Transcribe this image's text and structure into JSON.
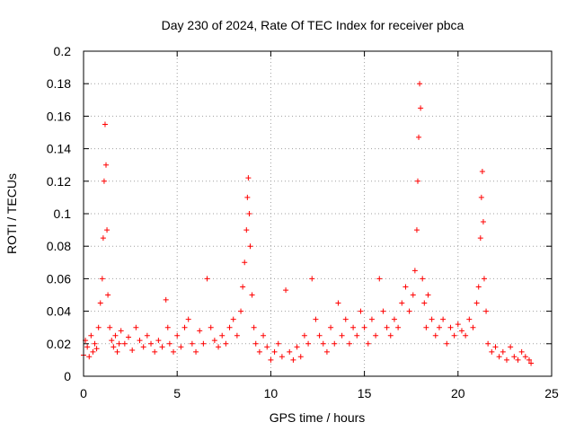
{
  "chart_data": {
    "type": "scatter",
    "title": "Day 230 of 2024, Rate Of TEC Index for receiver pbca",
    "xlabel": "GPS time / hours",
    "ylabel": "ROTI / TECUs",
    "xlim": [
      0,
      25
    ],
    "ylim": [
      0,
      0.2
    ],
    "x_ticks": [
      0,
      5,
      10,
      15,
      20,
      25
    ],
    "x_tick_labels": [
      "0",
      "5",
      "10",
      "15",
      "20",
      "25"
    ],
    "y_ticks": [
      0,
      0.02,
      0.04,
      0.06,
      0.08,
      0.1,
      0.12,
      0.14,
      0.16,
      0.18,
      0.2
    ],
    "y_tick_labels": [
      "0",
      "0.02",
      "0.04",
      "0.06",
      "0.08",
      "0.1",
      "0.12",
      "0.14",
      "0.16",
      "0.18",
      "0.2"
    ],
    "grid": true,
    "marker": "+",
    "color": "#ff0000",
    "series": [
      {
        "name": "ROTI",
        "x": [
          0.0,
          0.1,
          0.2,
          0.3,
          0.4,
          0.5,
          0.6,
          0.7,
          0.8,
          0.9,
          1.0,
          1.05,
          1.1,
          1.15,
          1.2,
          1.25,
          1.3,
          1.4,
          1.5,
          1.6,
          1.7,
          1.8,
          1.9,
          2.0,
          2.2,
          2.4,
          2.6,
          2.8,
          3.0,
          3.2,
          3.4,
          3.6,
          3.8,
          4.0,
          4.2,
          4.4,
          4.5,
          4.6,
          4.8,
          5.0,
          5.2,
          5.4,
          5.6,
          5.8,
          6.0,
          6.2,
          6.4,
          6.6,
          6.8,
          7.0,
          7.2,
          7.4,
          7.6,
          7.8,
          8.0,
          8.2,
          8.4,
          8.5,
          8.6,
          8.7,
          8.75,
          8.8,
          8.85,
          8.9,
          9.0,
          9.1,
          9.2,
          9.4,
          9.6,
          9.8,
          10.0,
          10.2,
          10.4,
          10.6,
          10.8,
          11.0,
          11.2,
          11.4,
          11.6,
          11.8,
          12.0,
          12.2,
          12.4,
          12.6,
          12.8,
          13.0,
          13.2,
          13.4,
          13.6,
          13.8,
          14.0,
          14.2,
          14.4,
          14.6,
          14.8,
          15.0,
          15.2,
          15.4,
          15.6,
          15.8,
          16.0,
          16.2,
          16.4,
          16.6,
          16.8,
          17.0,
          17.2,
          17.4,
          17.6,
          17.7,
          17.8,
          17.85,
          17.9,
          17.95,
          18.0,
          18.1,
          18.2,
          18.3,
          18.4,
          18.6,
          18.8,
          19.0,
          19.2,
          19.4,
          19.6,
          19.8,
          20.0,
          20.2,
          20.4,
          20.6,
          20.8,
          21.0,
          21.1,
          21.2,
          21.25,
          21.3,
          21.35,
          21.4,
          21.5,
          21.6,
          21.8,
          22.0,
          22.2,
          22.4,
          22.6,
          22.8,
          23.0,
          23.2,
          23.4,
          23.6,
          23.8,
          23.9
        ],
        "y": [
          0.013,
          0.022,
          0.018,
          0.012,
          0.025,
          0.015,
          0.02,
          0.017,
          0.03,
          0.045,
          0.06,
          0.085,
          0.12,
          0.155,
          0.13,
          0.09,
          0.05,
          0.03,
          0.022,
          0.018,
          0.025,
          0.015,
          0.02,
          0.028,
          0.02,
          0.024,
          0.016,
          0.03,
          0.022,
          0.018,
          0.025,
          0.02,
          0.015,
          0.022,
          0.018,
          0.047,
          0.03,
          0.02,
          0.015,
          0.025,
          0.018,
          0.03,
          0.035,
          0.02,
          0.015,
          0.028,
          0.02,
          0.06,
          0.03,
          0.022,
          0.018,
          0.025,
          0.02,
          0.03,
          0.035,
          0.025,
          0.04,
          0.055,
          0.07,
          0.09,
          0.11,
          0.122,
          0.1,
          0.08,
          0.05,
          0.03,
          0.02,
          0.015,
          0.025,
          0.018,
          0.01,
          0.015,
          0.02,
          0.012,
          0.053,
          0.015,
          0.01,
          0.018,
          0.012,
          0.025,
          0.02,
          0.06,
          0.035,
          0.025,
          0.02,
          0.015,
          0.03,
          0.02,
          0.045,
          0.025,
          0.035,
          0.02,
          0.03,
          0.025,
          0.04,
          0.03,
          0.02,
          0.035,
          0.025,
          0.06,
          0.04,
          0.03,
          0.025,
          0.035,
          0.03,
          0.045,
          0.055,
          0.04,
          0.05,
          0.065,
          0.09,
          0.12,
          0.147,
          0.18,
          0.165,
          0.06,
          0.045,
          0.03,
          0.05,
          0.035,
          0.025,
          0.03,
          0.035,
          0.02,
          0.03,
          0.025,
          0.032,
          0.028,
          0.025,
          0.035,
          0.03,
          0.045,
          0.055,
          0.085,
          0.11,
          0.126,
          0.095,
          0.06,
          0.04,
          0.02,
          0.015,
          0.018,
          0.012,
          0.015,
          0.01,
          0.018,
          0.012,
          0.01,
          0.015,
          0.012,
          0.01,
          0.008
        ]
      }
    ]
  }
}
